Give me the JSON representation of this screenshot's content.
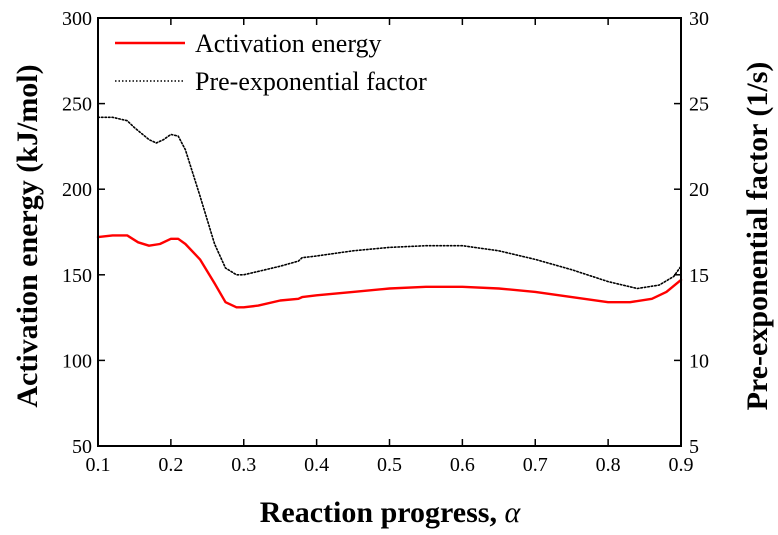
{
  "chart_data": {
    "type": "line",
    "title": "",
    "xlabel": "Reaction progress, ",
    "xlabel_symbol": "α",
    "ylabel_left": "Activation energy (kJ/mol)",
    "ylabel_right": "Pre-exponential factor (1/s)",
    "xlim": [
      0.1,
      0.9
    ],
    "ylim_left": [
      50,
      300
    ],
    "ylim_right": [
      5,
      30
    ],
    "x_ticks": [
      "0.1",
      "0.2",
      "0.3",
      "0.4",
      "0.5",
      "0.6",
      "0.7",
      "0.8",
      "0.9"
    ],
    "y_left_ticks": [
      "50",
      "100",
      "150",
      "200",
      "250",
      "300"
    ],
    "y_right_ticks": [
      "5",
      "10",
      "15",
      "20",
      "25",
      "30"
    ],
    "grid": false,
    "legend_position": "top-left",
    "series": [
      {
        "name": "Activation energy",
        "axis": "left",
        "color": "#ff0000",
        "style": "solid",
        "x": [
          0.1,
          0.12,
          0.14,
          0.155,
          0.17,
          0.185,
          0.2,
          0.21,
          0.22,
          0.24,
          0.26,
          0.275,
          0.29,
          0.3,
          0.32,
          0.35,
          0.375,
          0.38,
          0.4,
          0.45,
          0.5,
          0.55,
          0.6,
          0.65,
          0.7,
          0.75,
          0.8,
          0.83,
          0.86,
          0.88,
          0.9
        ],
        "values": [
          172,
          173,
          173,
          169,
          167,
          168,
          171,
          171,
          168,
          159,
          145,
          134,
          131,
          131,
          132,
          135,
          136,
          137,
          138,
          140,
          142,
          143,
          143,
          142,
          140,
          137,
          134,
          134,
          136,
          140,
          147
        ]
      },
      {
        "name": "Pre-exponential factor",
        "axis": "right",
        "color": "#000000",
        "style": "dotted",
        "x": [
          0.1,
          0.12,
          0.14,
          0.15,
          0.17,
          0.18,
          0.19,
          0.2,
          0.21,
          0.22,
          0.24,
          0.26,
          0.275,
          0.29,
          0.3,
          0.32,
          0.35,
          0.375,
          0.38,
          0.4,
          0.45,
          0.5,
          0.55,
          0.6,
          0.65,
          0.7,
          0.75,
          0.8,
          0.84,
          0.87,
          0.89,
          0.9
        ],
        "values": [
          24.2,
          24.2,
          24.0,
          23.6,
          22.9,
          22.7,
          22.9,
          23.2,
          23.1,
          22.3,
          19.6,
          16.8,
          15.4,
          15.0,
          15.0,
          15.2,
          15.5,
          15.8,
          16.0,
          16.1,
          16.4,
          16.6,
          16.7,
          16.7,
          16.4,
          15.9,
          15.3,
          14.6,
          14.2,
          14.4,
          14.9,
          15.5
        ]
      }
    ]
  }
}
